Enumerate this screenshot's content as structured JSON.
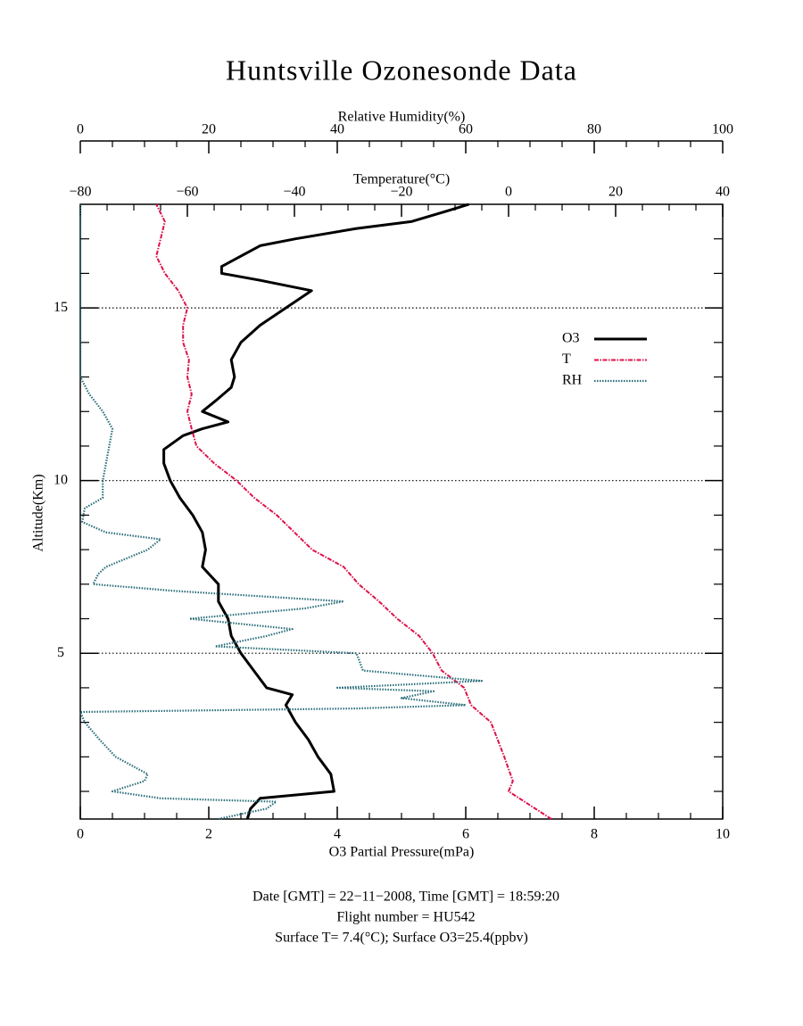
{
  "chart_data": {
    "type": "line",
    "title": "Huntsville Ozonesonde Data",
    "xlabel": "O3 Partial Pressure(mPa)",
    "x2label": "Temperature(°C)",
    "x3label": "Relative Humidity(%)",
    "ylabel": "Altitude(Km)",
    "xlim": [
      0,
      10
    ],
    "xticks": [
      0,
      2,
      4,
      6,
      8,
      10
    ],
    "xminorticks": [
      0.5,
      1,
      1.5,
      2.5,
      3,
      3.5,
      4.5,
      5,
      5.5,
      6.5,
      7,
      7.5,
      8.5,
      9,
      9.5
    ],
    "x2lim": [
      -80,
      40
    ],
    "x2ticks": [
      {
        "value": -80,
        "label": "−80"
      },
      {
        "value": -60,
        "label": "−60"
      },
      {
        "value": -40,
        "label": "−40"
      },
      {
        "value": -20,
        "label": "−20"
      },
      0,
      20,
      40
    ],
    "x2minorticks": [
      -75,
      -70,
      -65,
      -55,
      -50,
      -45,
      -35,
      -30,
      -25,
      -15,
      -10,
      -5,
      5,
      10,
      15,
      25,
      30,
      35
    ],
    "x3lim": [
      0,
      100
    ],
    "x3ticks": [
      0,
      20,
      40,
      60,
      80,
      100
    ],
    "x3minorticks": [
      5,
      10,
      15,
      25,
      30,
      35,
      45,
      50,
      55,
      65,
      70,
      75,
      85,
      90,
      95
    ],
    "ylim": [
      0.2,
      18
    ],
    "yticks": [
      5,
      10,
      15
    ],
    "yminorticks": [
      1,
      2,
      3,
      4,
      6,
      7,
      8,
      9,
      11,
      12,
      13,
      14,
      16,
      17
    ],
    "grid": true,
    "legend": "right",
    "series": [
      {
        "name": "O3",
        "color": "#000000",
        "axis": "x",
        "altitude": [
          0.2,
          0.5,
          0.8,
          1.0,
          1.5,
          2,
          2.5,
          3,
          3.5,
          3.8,
          4.0,
          4.5,
          5,
          5.5,
          6,
          6.5,
          7,
          7.5,
          8,
          8.5,
          9,
          9.5,
          10,
          10.5,
          10.9,
          11.3,
          11.5,
          11.7,
          12,
          12.3,
          12.7,
          13,
          13.5,
          14,
          14.5,
          15,
          15.5,
          15.8,
          16,
          16.2,
          16.5,
          16.8,
          17,
          17.3,
          17.5,
          17.8,
          18
        ],
        "values": [
          2.6,
          2.65,
          2.8,
          3.95,
          3.9,
          3.7,
          3.55,
          3.35,
          3.2,
          3.3,
          2.9,
          2.7,
          2.5,
          2.35,
          2.3,
          2.15,
          2.15,
          1.9,
          1.95,
          1.9,
          1.75,
          1.55,
          1.4,
          1.3,
          1.3,
          1.6,
          1.9,
          2.3,
          1.9,
          2.1,
          2.35,
          2.4,
          2.35,
          2.5,
          2.8,
          3.2,
          3.6,
          2.8,
          2.2,
          2.2,
          2.5,
          2.8,
          3.35,
          4.3,
          5.15,
          5.7,
          6.05
        ]
      },
      {
        "name": "T",
        "color": "#e0104a",
        "axis": "x2",
        "altitude": [
          0.2,
          0.5,
          1.0,
          1.3,
          2,
          3,
          3.5,
          4,
          4.5,
          5,
          5.5,
          6,
          6.5,
          7,
          7.5,
          8,
          8.5,
          9,
          9.5,
          10,
          10.5,
          11,
          11.5,
          12,
          12.5,
          13,
          13.5,
          14,
          14.5,
          15,
          15.5,
          16,
          16.5,
          17,
          17.5,
          18
        ],
        "values": [
          8.0,
          5,
          0,
          0.8,
          -0.8,
          -3.3,
          -7,
          -8.3,
          -12.5,
          -14.2,
          -16.7,
          -20.8,
          -24.2,
          -28,
          -30.8,
          -36.7,
          -40,
          -43.3,
          -47.5,
          -50.8,
          -55,
          -58.3,
          -59.2,
          -60,
          -59.2,
          -60,
          -59.7,
          -60.8,
          -60.8,
          -60,
          -61.7,
          -64.2,
          -65.8,
          -65,
          -64.2,
          -65.8
        ]
      },
      {
        "name": "RH",
        "color": "#2a6e7a",
        "axis": "x3",
        "altitude": [
          0.2,
          0.5,
          0.7,
          0.8,
          1.0,
          1.3,
          1.5,
          2,
          2.5,
          3,
          3.3,
          3.4,
          3.5,
          3.7,
          3.9,
          4.0,
          4.2,
          4.5,
          5,
          5.2,
          5.5,
          5.7,
          6.0,
          6.3,
          6.5,
          6.8,
          7,
          7.3,
          7.5,
          8,
          8.3,
          8.5,
          8.8,
          9.2,
          9.5,
          10,
          10.5,
          11,
          11.5,
          12,
          12.5,
          13,
          15,
          18
        ],
        "values": [
          21.5,
          29,
          30.5,
          12.5,
          5,
          10,
          10.5,
          5.5,
          3,
          0.7,
          0,
          43,
          60,
          50,
          55,
          40,
          62.5,
          44,
          43,
          21,
          29,
          33,
          17,
          35,
          41,
          15,
          2,
          2.8,
          4,
          10.5,
          12.5,
          4,
          0.3,
          0.7,
          3.5,
          3.5,
          4,
          4.5,
          5,
          3.5,
          1.4,
          0,
          0,
          0
        ]
      }
    ],
    "footer": [
      "Date [GMT] = 22−11−2008,  Time [GMT] = 18:59:20",
      "Flight number = HU542",
      "Surface T= 7.4(°C); Surface O3=25.4(ppbv)"
    ]
  }
}
